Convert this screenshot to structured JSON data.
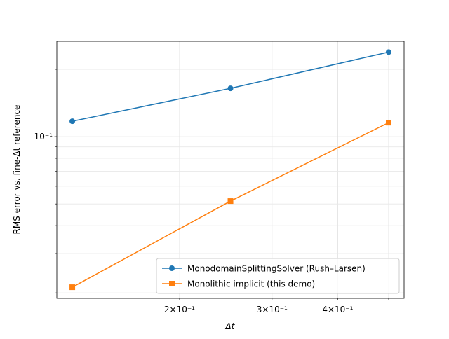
{
  "chart_data": {
    "type": "line",
    "log_x": true,
    "log_y": true,
    "grid": true,
    "legend": "lower right",
    "xlabel": "Δt",
    "ylabel": "RMS error vs. fine-Δt reference",
    "x": [
      0.125,
      0.25,
      0.5
    ],
    "series": [
      {
        "name": "MonodomainSplittingSolver (Rush–Larsen)",
        "color": "#1f77b4",
        "marker": "circle",
        "values": [
          0.1172,
          0.1645,
          0.239
        ]
      },
      {
        "name": "Monolithic implicit (this demo)",
        "color": "#ff7f0e",
        "marker": "square",
        "values": [
          0.0212,
          0.0515,
          0.1155
        ]
      }
    ],
    "xlim": [
      0.1168,
      0.535
    ],
    "ylim": [
      0.0189,
      0.267
    ],
    "xticks": [
      {
        "value": 0.2,
        "label": "2×10⁻¹"
      },
      {
        "value": 0.3,
        "label": "3×10⁻¹"
      },
      {
        "value": 0.4,
        "label": "4×10⁻¹"
      }
    ],
    "xminorticks": [
      0.5
    ],
    "yticks": [
      {
        "value": 0.1,
        "label": "10⁻¹"
      }
    ],
    "yminorticks": [
      0.02,
      0.03,
      0.04,
      0.05,
      0.06,
      0.07,
      0.08,
      0.09,
      0.2
    ]
  }
}
